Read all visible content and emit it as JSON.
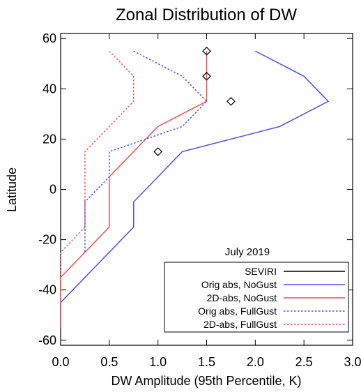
{
  "chart_data": {
    "type": "line",
    "title": "Zonal Distribution of DW",
    "xlabel": "DW Amplitude (95th Percentile, K)",
    "ylabel": "Latitude",
    "xlim": [
      0.0,
      3.0
    ],
    "ylim": [
      -62,
      62
    ],
    "x_ticks": [
      "0.0",
      "0.5",
      "1.0",
      "1.5",
      "2.0",
      "2.5",
      "3.0"
    ],
    "x_tick_values": [
      0.0,
      0.5,
      1.0,
      1.5,
      2.0,
      2.5,
      3.0
    ],
    "y_ticks": [
      "-60",
      "-40",
      "-20",
      "0",
      "20",
      "40",
      "60"
    ],
    "y_tick_values": [
      -60,
      -40,
      -20,
      0,
      20,
      40,
      60
    ],
    "grid": false,
    "legend_position": "bottom-right",
    "legend_title": "July 2019",
    "series": [
      {
        "name": "SEVIRI",
        "style": "diamond-markers",
        "color": "#000000",
        "points": [
          {
            "x": 1.5,
            "y": 55
          },
          {
            "x": 1.5,
            "y": 45
          },
          {
            "x": 1.75,
            "y": 35
          },
          {
            "x": 1.0,
            "y": 15
          }
        ]
      },
      {
        "name": "Orig abs, NoGust",
        "style": "solid",
        "color": "#4d4dff",
        "points": [
          {
            "x": 2.0,
            "y": 55
          },
          {
            "x": 2.5,
            "y": 45
          },
          {
            "x": 2.75,
            "y": 35
          },
          {
            "x": 2.25,
            "y": 25
          },
          {
            "x": 1.25,
            "y": 15
          },
          {
            "x": 0.75,
            "y": -5
          },
          {
            "x": 0.75,
            "y": -15
          },
          {
            "x": 0.0,
            "y": -45
          },
          {
            "x": 0.0,
            "y": -55
          }
        ]
      },
      {
        "name": "2D-abs, NoGust",
        "style": "solid",
        "color": "#ff4d4d",
        "points": [
          {
            "x": 1.5,
            "y": 55
          },
          {
            "x": 1.5,
            "y": 45
          },
          {
            "x": 1.5,
            "y": 35
          },
          {
            "x": 1.0,
            "y": 25
          },
          {
            "x": 0.5,
            "y": 5
          },
          {
            "x": 0.5,
            "y": -15
          },
          {
            "x": 0.0,
            "y": -35
          },
          {
            "x": 0.0,
            "y": -55
          }
        ]
      },
      {
        "name": "Orig abs, FullGust",
        "style": "dotted",
        "color": "#4d4dff",
        "points": [
          {
            "x": 0.75,
            "y": 55
          },
          {
            "x": 1.25,
            "y": 45
          },
          {
            "x": 1.5,
            "y": 35
          },
          {
            "x": 1.25,
            "y": 25
          },
          {
            "x": 0.5,
            "y": 15
          },
          {
            "x": 0.5,
            "y": 5
          },
          {
            "x": 0.25,
            "y": -5
          },
          {
            "x": 0.25,
            "y": -25
          }
        ]
      },
      {
        "name": "2D-abs, FullGust",
        "style": "dotted",
        "color": "#ff4d4d",
        "points": [
          {
            "x": 0.5,
            "y": 55
          },
          {
            "x": 0.75,
            "y": 45
          },
          {
            "x": 0.75,
            "y": 35
          },
          {
            "x": 0.5,
            "y": 25
          },
          {
            "x": 0.25,
            "y": 15
          },
          {
            "x": 0.25,
            "y": -15
          },
          {
            "x": 0.0,
            "y": -25
          },
          {
            "x": 0.0,
            "y": -55
          }
        ]
      }
    ]
  }
}
